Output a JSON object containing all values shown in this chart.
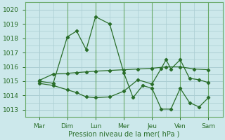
{
  "xlabel": "Pression niveau de la mer( hPa )",
  "xlabels": [
    "Mar",
    "Dim",
    "Lun",
    "Mer",
    "Jeu",
    "Ven",
    "Sam"
  ],
  "ylim": [
    1012.5,
    1020.5
  ],
  "yticks": [
    1013,
    1014,
    1015,
    1016,
    1017,
    1018,
    1019,
    1020
  ],
  "bg_color": "#cce8eb",
  "grid_color": "#aacdd2",
  "line_color": "#2a6e2a",
  "line1_x": [
    0,
    0.5,
    1.0,
    1.33,
    1.67,
    2.0,
    2.5,
    3.0,
    3.33,
    3.67,
    4.0,
    4.33,
    4.67,
    5.0,
    5.33,
    5.67,
    6.0
  ],
  "line1_y": [
    1015.0,
    1014.85,
    1018.1,
    1018.5,
    1017.2,
    1019.5,
    1019.0,
    1015.6,
    1013.85,
    1014.7,
    1014.5,
    1013.05,
    1013.05,
    1014.5,
    1013.5,
    1013.2,
    1013.85
  ],
  "line2_x": [
    0,
    0.5,
    1.0,
    1.33,
    1.67,
    2.0,
    2.5,
    3.0,
    3.5,
    4.0,
    4.5,
    5.0,
    5.5,
    6.0
  ],
  "line2_y": [
    1015.05,
    1015.5,
    1015.55,
    1015.6,
    1015.65,
    1015.7,
    1015.75,
    1015.8,
    1015.85,
    1015.9,
    1016.0,
    1016.0,
    1015.85,
    1015.8
  ],
  "line3_x": [
    0,
    0.5,
    1.0,
    1.33,
    1.67,
    2.0,
    2.5,
    3.0,
    3.5,
    4.0,
    4.33,
    4.5,
    4.67,
    5.0,
    5.33,
    5.67,
    6.0
  ],
  "line3_y": [
    1014.85,
    1014.7,
    1014.4,
    1014.2,
    1013.9,
    1013.85,
    1013.9,
    1014.3,
    1015.1,
    1014.8,
    1015.9,
    1016.5,
    1015.85,
    1016.5,
    1015.2,
    1015.1,
    1014.9
  ]
}
